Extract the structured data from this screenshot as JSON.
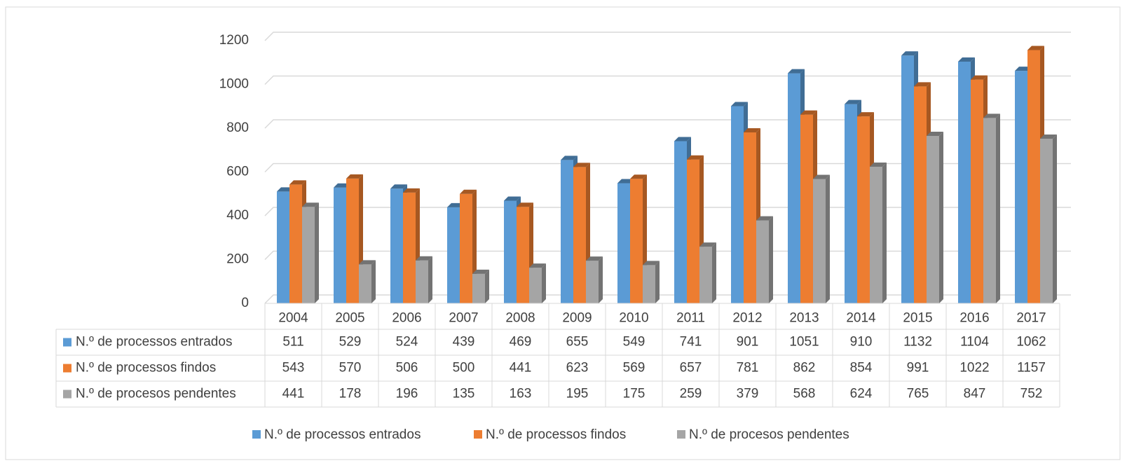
{
  "chart_data": {
    "type": "bar3d",
    "categories": [
      "2004",
      "2005",
      "2006",
      "2007",
      "2008",
      "2009",
      "2010",
      "2011",
      "2012",
      "2013",
      "2014",
      "2015",
      "2016",
      "2017"
    ],
    "series": [
      {
        "name": "N.º de processos entrados",
        "color": "#5b9bd5",
        "values": [
          511,
          529,
          524,
          439,
          469,
          655,
          549,
          741,
          901,
          1051,
          910,
          1132,
          1104,
          1062
        ]
      },
      {
        "name": "N.º de processos findos",
        "color": "#ed7d31",
        "values": [
          543,
          570,
          506,
          500,
          441,
          623,
          569,
          657,
          781,
          862,
          854,
          991,
          1022,
          1157
        ]
      },
      {
        "name": "N.º de procesos pendentes",
        "color": "#a5a5a5",
        "values": [
          441,
          178,
          196,
          135,
          163,
          195,
          175,
          259,
          379,
          568,
          624,
          765,
          847,
          752
        ]
      }
    ],
    "ylim": [
      0,
      1200
    ],
    "yticks": [
      0,
      200,
      400,
      600,
      800,
      1000,
      1200
    ],
    "grid": true,
    "legend": "bottom",
    "data_table": true
  }
}
